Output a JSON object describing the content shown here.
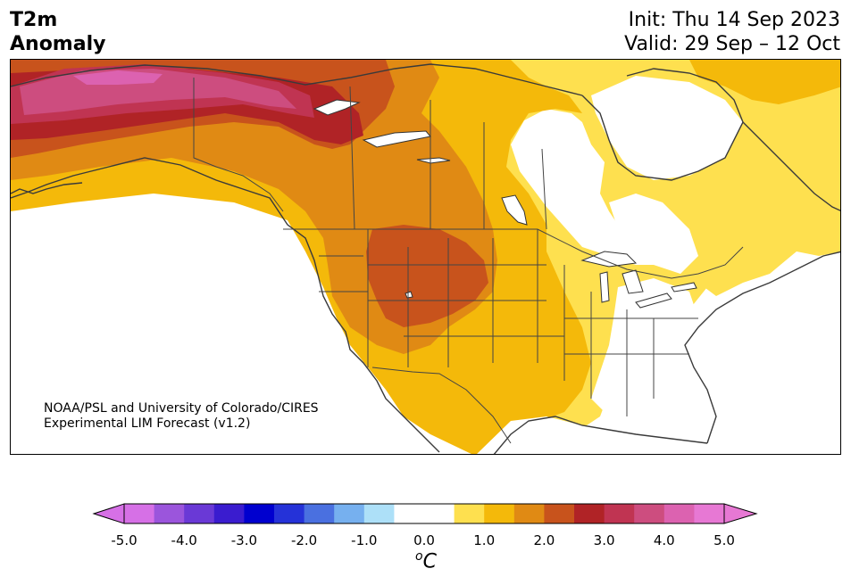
{
  "title": {
    "line1": "T2m",
    "line2": "Anomaly"
  },
  "dates": {
    "init": "Init: Thu 14 Sep 2023",
    "valid": "Valid: 29 Sep – 12 Oct"
  },
  "credit": {
    "line1": "NOAA/PSL and University of Colorado/CIRES",
    "line2": "Experimental LIM Forecast (v1.2)"
  },
  "colorbar": {
    "colors": [
      "#d670e6",
      "#9b55dc",
      "#6a39d6",
      "#3a1ccf",
      "#0000cf",
      "#2532d8",
      "#4a70e0",
      "#76b0ef",
      "#ade0f8",
      "#ffffff",
      "#ffffff",
      "#fee04f",
      "#f4b90a",
      "#e08a14",
      "#c8531c",
      "#b02326",
      "#c03452",
      "#cd4d7f",
      "#dc62b0",
      "#e778d4"
    ],
    "extend_low": "#d670e6",
    "extend_high": "#e778d4",
    "ticks": [
      "-5.0",
      "-4.0",
      "-3.0",
      "-2.0",
      "-1.0",
      "0.0",
      "1.0",
      "2.0",
      "3.0",
      "4.0",
      "5.0"
    ],
    "unit_base": "C",
    "unit_sup": "o"
  },
  "map": {
    "anomaly_colors": {
      "plus_0_5": "#fee04f",
      "plus_1_0": "#f4b90a",
      "plus_1_5": "#e08a14",
      "plus_2_0": "#c8531c",
      "plus_2_5": "#b02326",
      "plus_3_0": "#c03452",
      "plus_3_5": "#cd4d7f",
      "plus_4_0": "#dc62b0"
    }
  }
}
